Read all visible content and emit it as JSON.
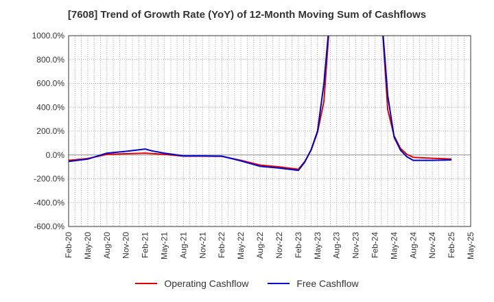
{
  "chart_data": {
    "type": "line",
    "title": "[7608]  Trend of Growth Rate (YoY) of 12-Month Moving Sum of Cashflows",
    "xlabel": "",
    "ylabel": "",
    "ylim": [
      -600,
      1000
    ],
    "y_ticks": [
      "1000.0%",
      "800.0%",
      "600.0%",
      "400.0%",
      "200.0%",
      "0.0%",
      "-200.0%",
      "-400.0%",
      "-600.0%"
    ],
    "y_tick_values": [
      1000,
      800,
      600,
      400,
      200,
      0,
      -200,
      -400,
      -600
    ],
    "x_ticks": [
      "Feb-20",
      "May-20",
      "Aug-20",
      "Nov-20",
      "Feb-21",
      "May-21",
      "Aug-21",
      "Nov-21",
      "Feb-22",
      "May-22",
      "Aug-22",
      "Nov-22",
      "Feb-23",
      "May-23",
      "Aug-23",
      "Nov-23",
      "Feb-24",
      "May-24",
      "Aug-24",
      "Nov-24",
      "Feb-25",
      "May-25"
    ],
    "grid": true,
    "legend_position": "bottom",
    "series": [
      {
        "name": "Operating Cashflow",
        "color": "#dd0000",
        "points": [
          [
            "Feb-20",
            -45
          ],
          [
            "May-20",
            -30
          ],
          [
            "Aug-20",
            5
          ],
          [
            "Nov-20",
            10
          ],
          [
            "Feb-21",
            15
          ],
          [
            "May-21",
            5
          ],
          [
            "Aug-21",
            -10
          ],
          [
            "Nov-21",
            -10
          ],
          [
            "Feb-22",
            -12
          ],
          [
            "May-22",
            -45
          ],
          [
            "Aug-22",
            -85
          ],
          [
            "Nov-22",
            -100
          ],
          [
            "Feb-23",
            -120
          ],
          [
            "Mar-23",
            -55
          ],
          [
            "Apr-23",
            40
          ],
          [
            "May-23",
            190
          ],
          [
            "Jun-23",
            450
          ],
          [
            "Jul-23",
            1200
          ],
          [
            "Mar-24",
            1200
          ],
          [
            "Apr-24",
            380
          ],
          [
            "May-24",
            160
          ],
          [
            "Jun-24",
            55
          ],
          [
            "Jul-24",
            5
          ],
          [
            "Aug-24",
            -20
          ],
          [
            "Nov-24",
            -28
          ],
          [
            "Feb-25",
            -35
          ]
        ]
      },
      {
        "name": "Free Cashflow",
        "color": "#0000cc",
        "points": [
          [
            "Feb-20",
            -55
          ],
          [
            "May-20",
            -35
          ],
          [
            "Aug-20",
            15
          ],
          [
            "Nov-20",
            30
          ],
          [
            "Feb-21",
            50
          ],
          [
            "Mar-21",
            35
          ],
          [
            "May-21",
            15
          ],
          [
            "Aug-21",
            -8
          ],
          [
            "Nov-21",
            -8
          ],
          [
            "Feb-22",
            -10
          ],
          [
            "May-22",
            -50
          ],
          [
            "Aug-22",
            -95
          ],
          [
            "Nov-22",
            -110
          ],
          [
            "Feb-23",
            -130
          ],
          [
            "Mar-23",
            -60
          ],
          [
            "Apr-23",
            45
          ],
          [
            "May-23",
            200
          ],
          [
            "Jun-23",
            600
          ],
          [
            "Jul-23",
            1200
          ],
          [
            "Mar-24",
            1200
          ],
          [
            "Apr-24",
            500
          ],
          [
            "May-24",
            150
          ],
          [
            "Jun-24",
            40
          ],
          [
            "Jul-24",
            -15
          ],
          [
            "Aug-24",
            -45
          ],
          [
            "Nov-24",
            -45
          ],
          [
            "Feb-25",
            -42
          ]
        ]
      }
    ]
  }
}
